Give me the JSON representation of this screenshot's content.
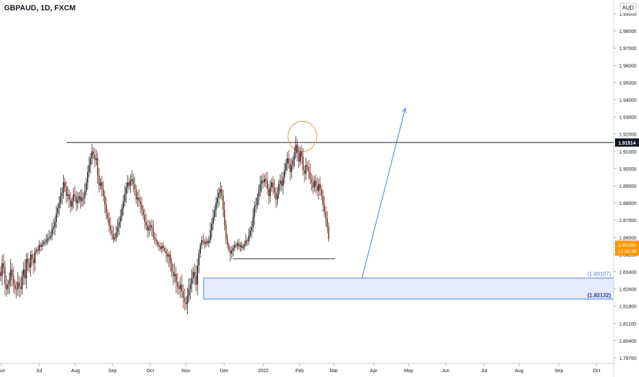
{
  "header": {
    "title": "GBPAUD, 1D, FXCM",
    "currency": "AUD"
  },
  "colors": {
    "up": "#1e1e1e",
    "down": "#7a2a1f",
    "arrow": "#3d7de0",
    "zone_fill": "#e6ecff",
    "zone_border": "#4a7be0",
    "resistance": "#1b1b1b",
    "circle": "#f0a46a",
    "current_price_bg": "#ff9800",
    "resistance_label_bg": "#131722"
  },
  "chart_data": {
    "type": "candlestick",
    "x_tick_labels": [
      "Jun",
      "Jul",
      "Aug",
      "Sep",
      "Oct",
      "Nov",
      "Dec",
      "2022",
      "Feb",
      "Mar",
      "Apr",
      "May",
      "Jun",
      "Jul",
      "Aug",
      "Sep",
      "Oct"
    ],
    "y_tick_labels": [
      "1.99000",
      "1.98000",
      "1.97000",
      "1.96000",
      "1.95000",
      "1.94000",
      "1.93000",
      "1.92000",
      "1.91000",
      "1.90000",
      "1.89000",
      "1.88000",
      "1.87000",
      "1.86000",
      "1.84200",
      "1.83400",
      "1.82600",
      "1.81800",
      "1.81100",
      "1.80400",
      "1.79700"
    ],
    "y_tick_values": [
      1.99,
      1.98,
      1.97,
      1.96,
      1.95,
      1.94,
      1.93,
      1.92,
      1.91,
      1.9,
      1.89,
      1.88,
      1.87,
      1.86,
      1.842,
      1.834,
      1.826,
      1.818,
      1.811,
      1.804,
      1.797
    ],
    "closes": [
      1.832,
      1.838,
      1.836,
      1.828,
      1.826,
      1.828,
      1.83,
      1.835,
      1.832,
      1.828,
      1.826,
      1.826,
      1.829,
      1.827,
      1.826,
      1.832,
      1.835,
      1.831,
      1.84,
      1.838,
      1.836,
      1.842,
      1.84,
      1.838,
      1.845,
      1.847,
      1.846,
      1.852,
      1.85,
      1.853,
      1.855,
      1.855,
      1.857,
      1.859,
      1.86,
      1.861,
      1.865,
      1.866,
      1.869,
      1.874,
      1.877,
      1.88,
      1.884,
      1.886,
      1.892,
      1.889,
      1.884,
      1.885,
      1.882,
      1.878,
      1.881,
      1.885,
      1.884,
      1.88,
      1.882,
      1.884,
      1.881,
      1.883,
      1.883,
      1.887,
      1.892,
      1.898,
      1.902,
      1.906,
      1.91,
      1.908,
      1.905,
      1.906,
      1.896,
      1.89,
      1.892,
      1.888,
      1.884,
      1.879,
      1.874,
      1.871,
      1.867,
      1.864,
      1.862,
      1.858,
      1.86,
      1.863,
      1.866,
      1.869,
      1.872,
      1.877,
      1.881,
      1.885,
      1.889,
      1.892,
      1.89,
      1.893,
      1.894,
      1.891,
      1.888,
      1.882,
      1.883,
      1.881,
      1.879,
      1.876,
      1.873,
      1.869,
      1.867,
      1.864,
      1.866,
      1.867,
      1.865,
      1.86,
      1.858,
      1.855,
      1.852,
      1.85,
      1.848,
      1.851,
      1.849,
      1.846,
      1.843,
      1.841,
      1.842,
      1.838,
      1.834,
      1.832,
      1.833,
      1.829,
      1.827,
      1.826,
      1.828,
      1.825,
      1.822,
      1.82,
      1.819,
      1.823,
      1.826,
      1.828,
      1.831,
      1.834,
      1.832,
      1.828,
      1.837,
      1.843,
      1.852,
      1.857,
      1.855,
      1.853,
      1.856,
      1.854,
      1.857,
      1.864,
      1.868,
      1.872,
      1.876,
      1.88,
      1.883,
      1.886,
      1.888,
      1.884,
      1.876,
      1.867,
      1.858,
      1.852,
      1.847,
      1.843,
      1.846,
      1.849,
      1.852,
      1.851,
      1.854,
      1.85,
      1.852,
      1.849,
      1.851,
      1.853,
      1.857,
      1.856,
      1.861,
      1.864,
      1.866,
      1.872,
      1.878,
      1.879,
      1.883,
      1.887,
      1.891,
      1.893,
      1.892,
      1.894,
      1.893,
      1.888,
      1.884,
      1.889,
      1.892,
      1.889,
      1.886,
      1.882,
      1.885,
      1.891,
      1.893,
      1.89,
      1.895,
      1.899,
      1.903,
      1.906,
      1.903,
      1.898,
      1.902,
      1.905,
      1.909,
      1.914,
      1.909,
      1.904,
      1.91,
      1.907,
      1.899,
      1.897,
      1.902,
      1.901,
      1.898,
      1.894,
      1.892,
      1.889,
      1.893,
      1.89,
      1.887,
      1.891,
      1.888,
      1.884,
      1.879,
      1.875,
      1.871,
      1.866,
      1.858
    ],
    "current_price": {
      "value": 1.85165,
      "label": "1.85165",
      "countdown": "12:30:38"
    },
    "resistance": {
      "value": 1.91514,
      "label": "1.91514"
    },
    "support_line": {
      "value": 1.84
    },
    "demand_zone": {
      "top": 1.83107,
      "bottom": 1.82132,
      "top_label": "(1.83107)",
      "bottom_label": "(1.82132)"
    },
    "projection_arrow": {
      "from": 1.83107,
      "to": 1.935
    },
    "ylim": [
      1.7935,
      1.9945
    ],
    "grid": false
  }
}
